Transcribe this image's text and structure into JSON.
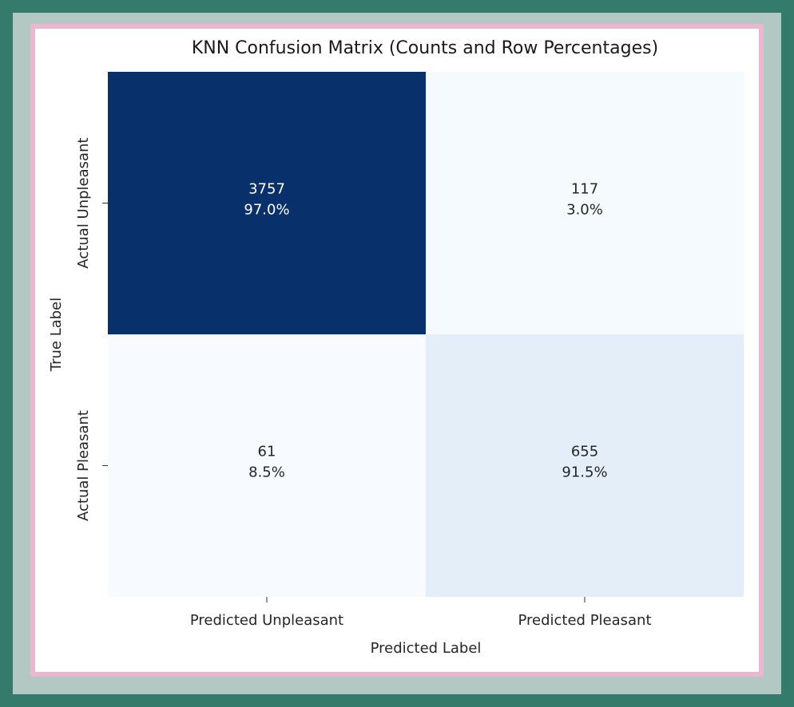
{
  "chart_data": {
    "type": "heatmap",
    "title": "KNN Confusion Matrix (Counts and Row Percentages)",
    "xlabel": "Predicted Label",
    "ylabel": "True Label",
    "x_categories": [
      "Predicted Unpleasant",
      "Predicted Pleasant"
    ],
    "y_categories": [
      "Actual Unpleasant",
      "Actual Pleasant"
    ],
    "counts": [
      [
        3757,
        117
      ],
      [
        61,
        655
      ]
    ],
    "percentages": [
      "97.0%",
      "3.0%",
      "8.5%",
      "91.5%"
    ],
    "row_percentages": [
      [
        97.0,
        3.0
      ],
      [
        8.5,
        91.5
      ]
    ],
    "colormap": "Blues",
    "colorbar": false
  },
  "colors": {
    "outer": "#347b6c",
    "band": "#b3c8c3",
    "frame": "#e9b8d0"
  }
}
